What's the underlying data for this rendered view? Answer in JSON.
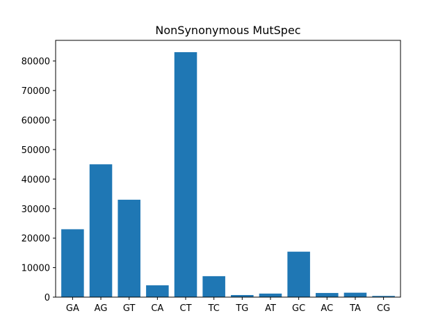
{
  "chart_data": {
    "type": "bar",
    "title": "NonSynonymous MutSpec",
    "xlabel": "",
    "ylabel": "",
    "categories": [
      "GA",
      "AG",
      "GT",
      "CA",
      "CT",
      "TC",
      "TG",
      "AT",
      "GC",
      "AC",
      "TA",
      "CG"
    ],
    "values": [
      23000,
      45000,
      33000,
      4000,
      83000,
      7100,
      700,
      1200,
      15400,
      1400,
      1500,
      400
    ],
    "ylim": [
      0,
      87000
    ],
    "yticks": [
      0,
      10000,
      20000,
      30000,
      40000,
      50000,
      60000,
      70000,
      80000
    ],
    "grid": false,
    "bar_color": "#1f77b4"
  }
}
